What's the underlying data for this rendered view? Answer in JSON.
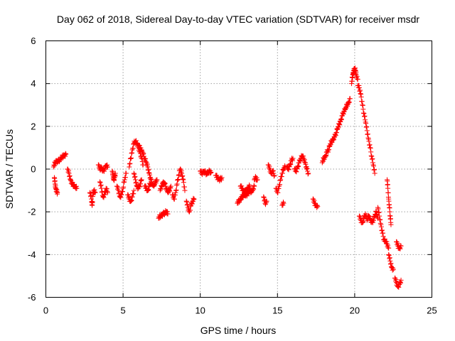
{
  "chart_data": {
    "type": "scatter",
    "title": "Day 062 of 2018, Sidereal Day-to-day VTEC variation (SDTVAR) for receiver msdr",
    "xlabel": "GPS time / hours",
    "ylabel": "SDTVAR / TECUs",
    "xlim": [
      0,
      25
    ],
    "ylim": [
      -6,
      6
    ],
    "xticks": [
      "0",
      "5",
      "10",
      "15",
      "20",
      "25"
    ],
    "yticks": [
      "-6",
      "-4",
      "-2",
      "0",
      "2",
      "4",
      "6"
    ],
    "grid": true,
    "marker": "plus",
    "colors": {
      "series": "#ff0000",
      "grid": "#a0a0a0",
      "axes": "#000000"
    },
    "series": [
      {
        "name": "SDTVAR",
        "segments": [
          [
            [
              0.55,
              -0.4
            ],
            [
              0.6,
              -0.7
            ],
            [
              0.65,
              -0.9
            ],
            [
              0.7,
              -1.05
            ],
            [
              0.75,
              -1.1
            ]
          ],
          [
            [
              0.5,
              0.1
            ],
            [
              0.6,
              0.3
            ],
            [
              0.7,
              0.4
            ],
            [
              0.8,
              0.35
            ],
            [
              0.9,
              0.45
            ],
            [
              1.0,
              0.5
            ],
            [
              1.1,
              0.6
            ],
            [
              1.2,
              0.65
            ],
            [
              1.3,
              0.7
            ]
          ],
          [
            [
              1.4,
              0.0
            ],
            [
              1.5,
              -0.2
            ],
            [
              1.6,
              -0.5
            ],
            [
              1.7,
              -0.7
            ],
            [
              1.8,
              -0.75
            ],
            [
              1.9,
              -0.85
            ],
            [
              2.0,
              -0.9
            ]
          ],
          [
            [
              2.85,
              -1.1
            ],
            [
              2.95,
              -1.4
            ],
            [
              3.0,
              -1.7
            ],
            [
              3.05,
              -1.2
            ],
            [
              3.1,
              -1.0
            ],
            [
              3.2,
              -1.1
            ]
          ],
          [
            [
              3.4,
              0.2
            ],
            [
              3.5,
              0.0
            ],
            [
              3.6,
              0.1
            ],
            [
              3.7,
              -0.1
            ],
            [
              3.8,
              0.0
            ],
            [
              3.9,
              0.15
            ],
            [
              4.0,
              0.1
            ]
          ],
          [
            [
              3.5,
              -0.6
            ],
            [
              3.6,
              -0.9
            ],
            [
              3.7,
              -1.3
            ],
            [
              3.8,
              -1.2
            ],
            [
              3.9,
              -0.9
            ],
            [
              4.0,
              -1.1
            ]
          ],
          [
            [
              4.3,
              -0.1
            ],
            [
              4.35,
              -0.3
            ],
            [
              4.4,
              -0.5
            ],
            [
              4.45,
              -0.4
            ],
            [
              4.5,
              -0.2
            ]
          ],
          [
            [
              4.6,
              -0.8
            ],
            [
              4.7,
              -1.0
            ],
            [
              4.8,
              -1.3
            ],
            [
              4.9,
              -1.2
            ],
            [
              5.0,
              -0.9
            ],
            [
              5.1,
              -0.5
            ],
            [
              5.2,
              -0.2
            ]
          ],
          [
            [
              5.3,
              -1.2
            ],
            [
              5.4,
              -1.4
            ],
            [
              5.5,
              -1.5
            ],
            [
              5.6,
              -1.3
            ],
            [
              5.7,
              -1.0
            ]
          ],
          [
            [
              5.4,
              0.1
            ],
            [
              5.5,
              0.5
            ],
            [
              5.6,
              0.9
            ],
            [
              5.7,
              1.2
            ],
            [
              5.8,
              1.3
            ],
            [
              5.9,
              1.2
            ],
            [
              6.0,
              1.0
            ],
            [
              6.1,
              0.8
            ],
            [
              6.2,
              0.5
            ],
            [
              6.3,
              0.2
            ]
          ],
          [
            [
              5.7,
              -0.2
            ],
            [
              5.8,
              -0.5
            ],
            [
              5.9,
              -0.8
            ],
            [
              6.0,
              -0.9
            ],
            [
              6.1,
              -0.7
            ],
            [
              6.2,
              -0.5
            ]
          ],
          [
            [
              6.0,
              1.1
            ],
            [
              6.1,
              1.0
            ],
            [
              6.2,
              0.9
            ],
            [
              6.3,
              0.7
            ],
            [
              6.4,
              0.5
            ],
            [
              6.5,
              0.3
            ],
            [
              6.6,
              0.1
            ],
            [
              6.7,
              -0.2
            ],
            [
              6.8,
              -0.5
            ],
            [
              6.9,
              -0.7
            ],
            [
              7.0,
              -0.8
            ],
            [
              7.1,
              -0.6
            ],
            [
              7.2,
              -0.5
            ]
          ],
          [
            [
              6.4,
              -0.8
            ],
            [
              6.5,
              -0.9
            ],
            [
              6.6,
              -1.0
            ],
            [
              6.7,
              -0.8
            ],
            [
              6.8,
              -0.6
            ]
          ],
          [
            [
              7.3,
              -2.3
            ],
            [
              7.4,
              -2.2
            ],
            [
              7.5,
              -2.15
            ],
            [
              7.6,
              -2.1
            ],
            [
              7.7,
              -2.05
            ],
            [
              7.8,
              -2.0
            ],
            [
              7.9,
              -2.1
            ]
          ],
          [
            [
              7.4,
              -1.0
            ],
            [
              7.5,
              -0.8
            ],
            [
              7.6,
              -0.6
            ],
            [
              7.7,
              -0.7
            ],
            [
              7.8,
              -0.9
            ],
            [
              7.9,
              -1.1
            ],
            [
              8.0,
              -1.0
            ],
            [
              8.1,
              -0.8
            ]
          ],
          [
            [
              8.2,
              -1.2
            ],
            [
              8.3,
              -1.4
            ],
            [
              8.4,
              -1.1
            ],
            [
              8.5,
              -0.7
            ],
            [
              8.6,
              -0.3
            ],
            [
              8.7,
              0.0
            ],
            [
              8.8,
              -0.2
            ],
            [
              8.9,
              -0.5
            ],
            [
              9.0,
              -1.0
            ]
          ],
          [
            [
              9.1,
              -1.5
            ],
            [
              9.2,
              -1.8
            ],
            [
              9.3,
              -2.0
            ],
            [
              9.4,
              -1.7
            ],
            [
              9.5,
              -1.5
            ],
            [
              9.6,
              -1.4
            ]
          ],
          [
            [
              10.0,
              -0.1
            ],
            [
              10.1,
              -0.2
            ],
            [
              10.2,
              -0.1
            ],
            [
              10.3,
              -0.15
            ],
            [
              10.4,
              -0.2
            ],
            [
              10.5,
              -0.2
            ],
            [
              10.6,
              -0.1
            ],
            [
              10.7,
              -0.15
            ]
          ],
          [
            [
              11.0,
              -0.3
            ],
            [
              11.1,
              -0.4
            ],
            [
              11.2,
              -0.45
            ],
            [
              11.3,
              -0.5
            ],
            [
              11.4,
              -0.4
            ]
          ],
          [
            [
              12.4,
              -1.6
            ],
            [
              12.5,
              -1.5
            ],
            [
              12.6,
              -1.4
            ],
            [
              12.7,
              -1.3
            ],
            [
              12.8,
              -1.2
            ],
            [
              12.9,
              -1.25
            ],
            [
              13.0,
              -1.2
            ],
            [
              13.1,
              -1.1
            ],
            [
              13.2,
              -1.0
            ],
            [
              13.3,
              -1.05
            ],
            [
              13.4,
              -1.0
            ],
            [
              13.5,
              -0.8
            ]
          ],
          [
            [
              12.6,
              -0.8
            ],
            [
              12.7,
              -0.9
            ],
            [
              12.8,
              -1.0
            ],
            [
              12.9,
              -1.05
            ],
            [
              13.0,
              -1.0
            ],
            [
              13.1,
              -0.9
            ],
            [
              13.2,
              -0.8
            ]
          ],
          [
            [
              13.5,
              -0.5
            ],
            [
              13.6,
              -0.4
            ],
            [
              13.7,
              -0.5
            ]
          ],
          [
            [
              14.1,
              -1.3
            ],
            [
              14.2,
              -1.6
            ],
            [
              14.3,
              -1.5
            ]
          ],
          [
            [
              14.4,
              0.2
            ],
            [
              14.5,
              0.0
            ],
            [
              14.6,
              -0.2
            ],
            [
              14.7,
              -0.1
            ],
            [
              14.8,
              -0.3
            ]
          ],
          [
            [
              14.9,
              -0.9
            ],
            [
              15.0,
              -1.1
            ],
            [
              15.1,
              -0.8
            ],
            [
              15.2,
              -0.5
            ],
            [
              15.3,
              -0.2
            ],
            [
              15.4,
              0.0
            ],
            [
              15.5,
              0.1
            ]
          ],
          [
            [
              15.3,
              -1.7
            ],
            [
              15.4,
              -1.6
            ]
          ],
          [
            [
              15.6,
              0.1
            ],
            [
              15.7,
              0.0
            ],
            [
              15.8,
              0.2
            ],
            [
              15.9,
              0.4
            ],
            [
              16.0,
              0.5
            ]
          ],
          [
            [
              16.1,
              0.0
            ],
            [
              16.2,
              -0.1
            ],
            [
              16.3,
              0.1
            ],
            [
              16.4,
              0.3
            ],
            [
              16.5,
              0.5
            ],
            [
              16.6,
              0.6
            ],
            [
              16.7,
              0.5
            ],
            [
              16.8,
              0.3
            ],
            [
              16.9,
              0.0
            ],
            [
              17.0,
              -0.2
            ]
          ],
          [
            [
              17.3,
              -1.4
            ],
            [
              17.4,
              -1.6
            ],
            [
              17.5,
              -1.7
            ],
            [
              17.6,
              -1.75
            ]
          ],
          [
            [
              17.9,
              0.3
            ],
            [
              18.0,
              0.5
            ],
            [
              18.1,
              0.6
            ],
            [
              18.2,
              0.8
            ],
            [
              18.3,
              0.9
            ],
            [
              18.4,
              1.1
            ],
            [
              18.5,
              1.3
            ],
            [
              18.6,
              1.4
            ],
            [
              18.7,
              1.5
            ],
            [
              18.8,
              1.7
            ],
            [
              18.9,
              1.9
            ],
            [
              19.0,
              2.1
            ],
            [
              19.1,
              2.3
            ],
            [
              19.2,
              2.5
            ],
            [
              19.3,
              2.7
            ],
            [
              19.4,
              2.8
            ],
            [
              19.5,
              3.0
            ],
            [
              19.6,
              3.1
            ],
            [
              19.7,
              3.3
            ]
          ],
          [
            [
              19.8,
              4.0
            ],
            [
              19.85,
              4.3
            ],
            [
              19.9,
              4.5
            ],
            [
              19.95,
              4.6
            ],
            [
              20.0,
              4.7
            ],
            [
              20.05,
              4.6
            ],
            [
              20.1,
              4.4
            ],
            [
              20.2,
              4.2
            ]
          ],
          [
            [
              20.2,
              3.9
            ],
            [
              20.3,
              3.8
            ],
            [
              20.4,
              3.5
            ],
            [
              20.5,
              3.0
            ],
            [
              20.6,
              2.6
            ],
            [
              20.7,
              2.2
            ],
            [
              20.8,
              1.8
            ],
            [
              20.9,
              1.4
            ],
            [
              21.0,
              1.0
            ],
            [
              21.1,
              0.6
            ],
            [
              21.2,
              0.2
            ],
            [
              21.3,
              -0.2
            ]
          ],
          [
            [
              20.3,
              -2.2
            ],
            [
              20.4,
              -2.4
            ],
            [
              20.5,
              -2.5
            ],
            [
              20.6,
              -2.3
            ],
            [
              20.7,
              -2.1
            ],
            [
              20.8,
              -2.4
            ],
            [
              20.9,
              -2.2
            ],
            [
              21.0,
              -2.3
            ],
            [
              21.1,
              -2.5
            ],
            [
              21.2,
              -2.4
            ],
            [
              21.3,
              -2.2
            ],
            [
              21.4,
              -2.0
            ],
            [
              21.5,
              -2.3
            ]
          ],
          [
            [
              21.5,
              -1.8
            ],
            [
              21.6,
              -2.2
            ],
            [
              21.7,
              -2.6
            ],
            [
              21.8,
              -3.0
            ],
            [
              21.9,
              -3.3
            ],
            [
              22.0,
              -3.4
            ],
            [
              22.1,
              -3.5
            ],
            [
              22.2,
              -3.7
            ]
          ],
          [
            [
              22.1,
              -0.5
            ],
            [
              22.15,
              -0.9
            ],
            [
              22.2,
              -1.4
            ],
            [
              22.25,
              -1.8
            ],
            [
              22.3,
              -2.2
            ],
            [
              22.35,
              -2.6
            ]
          ],
          [
            [
              22.2,
              -4.0
            ],
            [
              22.3,
              -4.3
            ],
            [
              22.4,
              -4.6
            ],
            [
              22.5,
              -4.7
            ]
          ],
          [
            [
              22.6,
              -5.1
            ],
            [
              22.7,
              -5.3
            ],
            [
              22.8,
              -5.5
            ],
            [
              22.9,
              -5.4
            ],
            [
              23.0,
              -5.2
            ]
          ],
          [
            [
              22.7,
              -3.4
            ],
            [
              22.8,
              -3.6
            ],
            [
              22.9,
              -3.7
            ],
            [
              23.0,
              -3.6
            ]
          ]
        ]
      }
    ]
  }
}
